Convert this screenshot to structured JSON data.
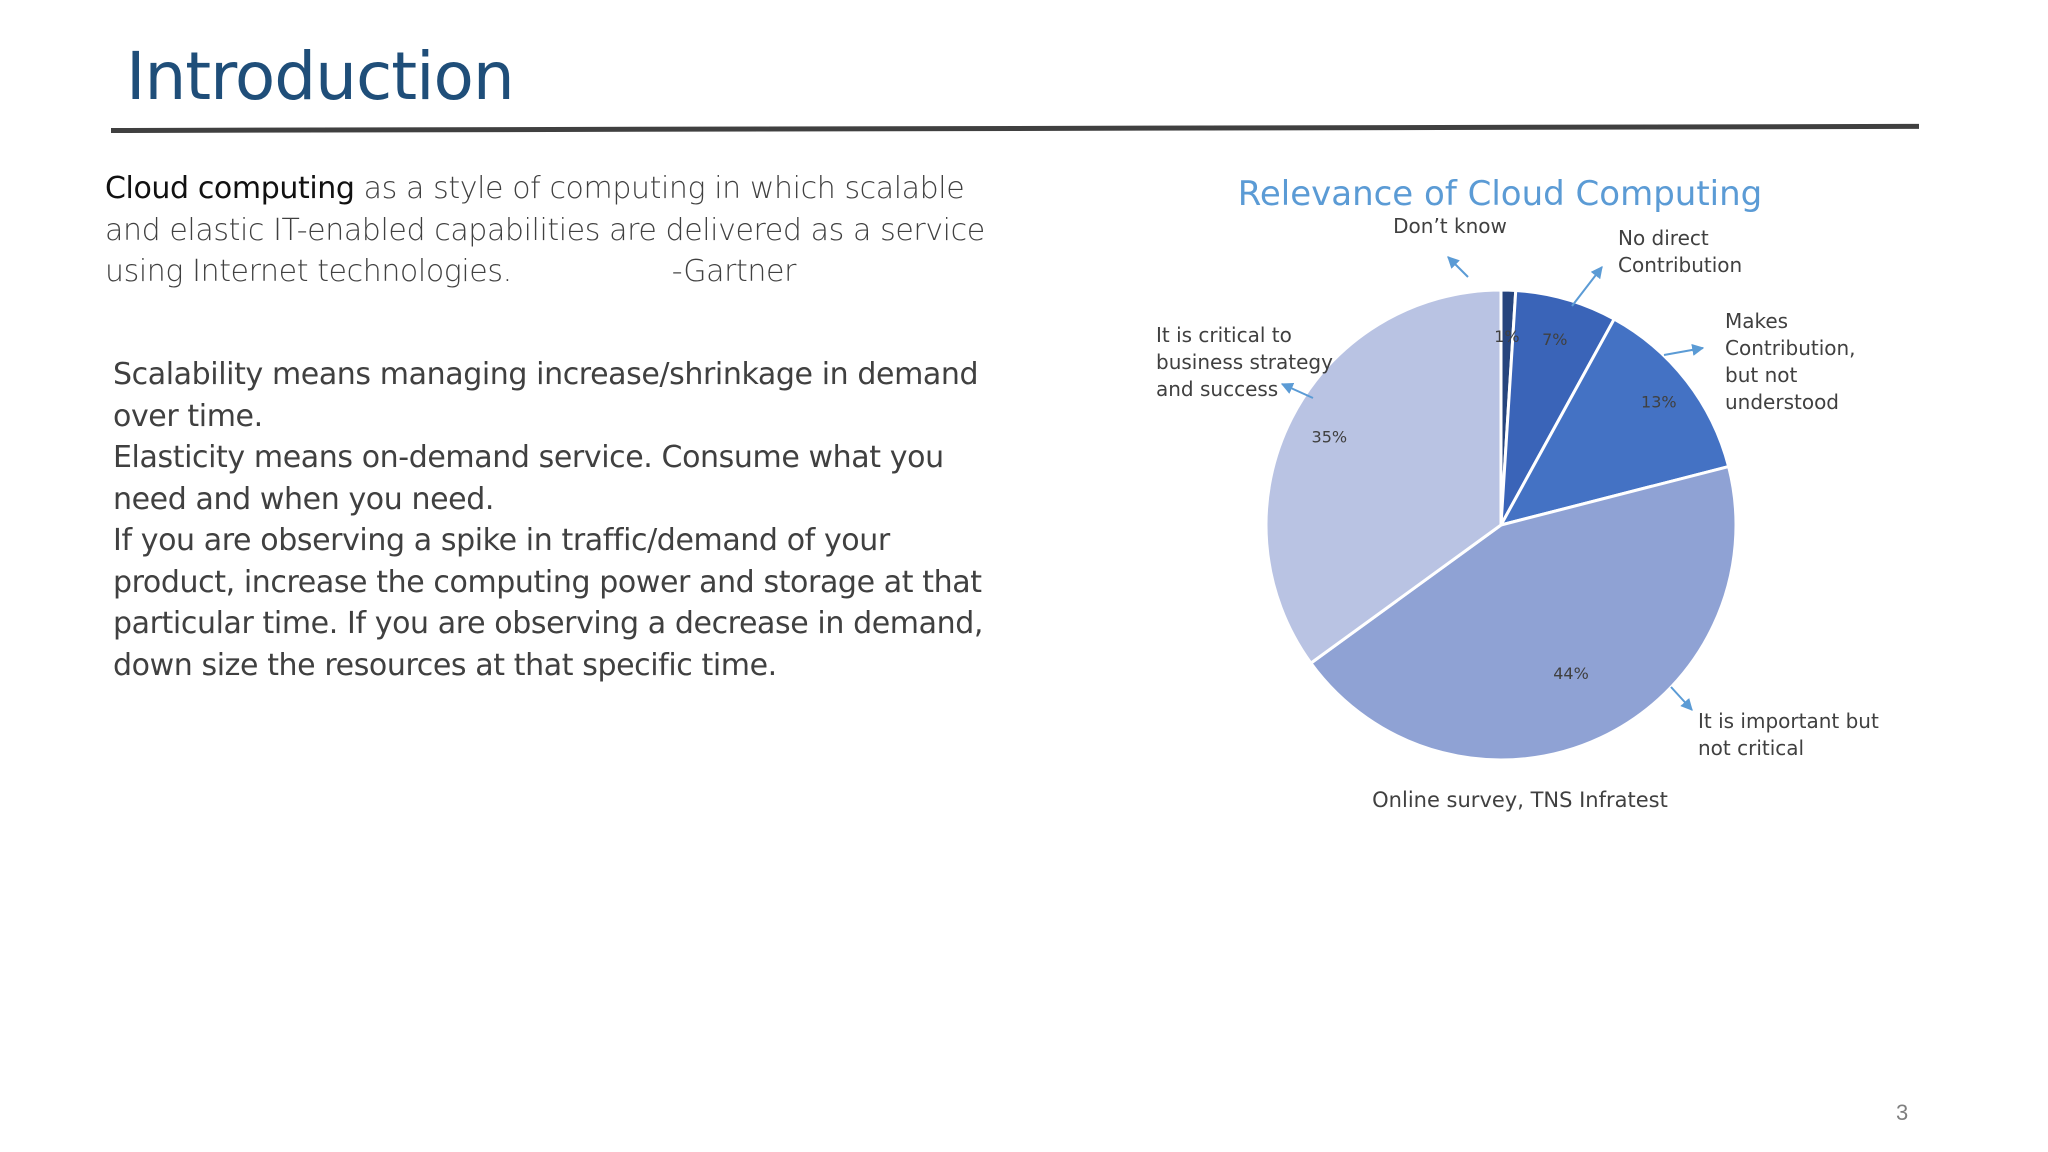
{
  "slide": {
    "title": "Introduction",
    "page_number": "3"
  },
  "definition": {
    "term": "Cloud computing",
    "text": " as a style of computing in which scalable and elastic IT-enabled capabilities are delivered as a service using Internet technologies.",
    "attribution": "-Gartner"
  },
  "body": {
    "paragraphs": [
      "Scalability means managing increase/shrinkage in demand over time.",
      "Elasticity means on-demand service. Consume what you need and when you need.",
      "If you are observing a spike in traffic/demand of your product, increase the computing power and storage at that particular time. If you are observing a decrease in demand, down size the resources at that specific time."
    ]
  },
  "chart_data": {
    "type": "pie",
    "title": "Relevance of Cloud Computing",
    "source_note": "Online survey, TNS Infratest",
    "categories": [
      "Don’t know",
      "No direct Contribution",
      "Makes Contribution, but not understood",
      "It is important but not critical",
      "It is critical to business strategy and success"
    ],
    "values": [
      1,
      7,
      13,
      44,
      35
    ],
    "value_labels": [
      "1%",
      "7%",
      "13%",
      "44%",
      "35%"
    ],
    "colors": [
      "#27457d",
      "#3a64b8",
      "#4472c4",
      "#8fa2d4",
      "#b9c3e3"
    ],
    "arrow_color": "#5b9bd5"
  }
}
